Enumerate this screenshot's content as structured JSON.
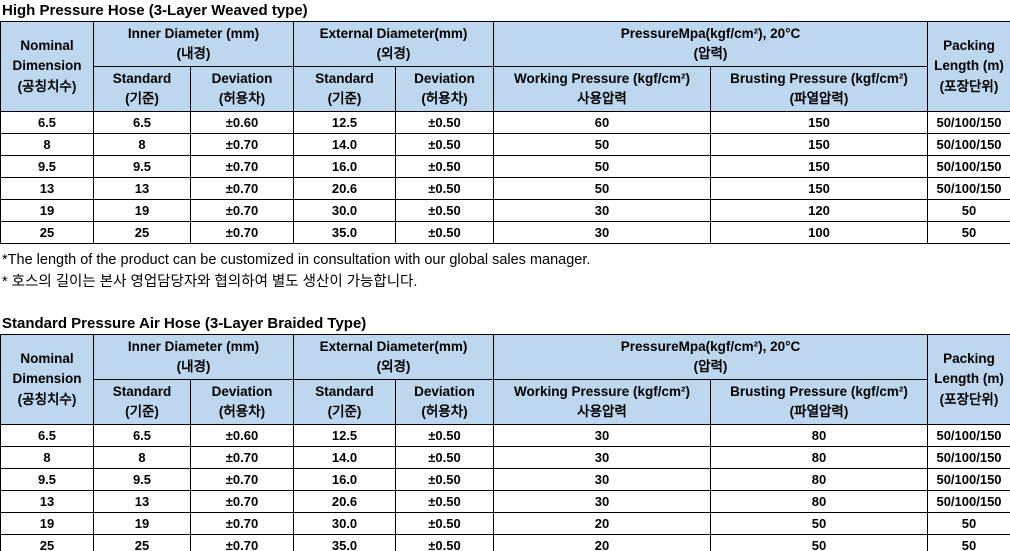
{
  "colors": {
    "header_bg": "#BDD7EE",
    "border": "#000000",
    "text": "#000000"
  },
  "tables": [
    {
      "title": "High Pressure Hose (3-Layer Weaved type)",
      "header": {
        "nominal_dimension": "Nominal\nDimension\n(공칭치수)",
        "inner_diameter": "Inner Diameter (mm)\n(내경)",
        "external_diameter": "External Diameter(mm)\n(외경)",
        "pressure": "PressureMpa(kgf/cm²), 20°C\n(압력)",
        "packing_length": "Packing\nLength (m)\n(포장단위)",
        "standard_inner": "Standard\n(기준)",
        "deviation_inner": "Deviation\n(허용차)",
        "standard_external": "Standard\n(기준)",
        "deviation_external": "Deviation\n(허용차)",
        "working_pressure": "Working Pressure (kgf/cm²)\n사용압력",
        "brusting_pressure": "Brusting Pressure (kgf/cm²)\n(파열압력)"
      },
      "rows": [
        [
          "6.5",
          "6.5",
          "±0.60",
          "12.5",
          "±0.50",
          "60",
          "150",
          "50/100/150"
        ],
        [
          "8",
          "8",
          "±0.70",
          "14.0",
          "±0.50",
          "50",
          "150",
          "50/100/150"
        ],
        [
          "9.5",
          "9.5",
          "±0.70",
          "16.0",
          "±0.50",
          "50",
          "150",
          "50/100/150"
        ],
        [
          "13",
          "13",
          "±0.70",
          "20.6",
          "±0.50",
          "50",
          "150",
          "50/100/150"
        ],
        [
          "19",
          "19",
          "±0.70",
          "30.0",
          "±0.50",
          "30",
          "120",
          "50"
        ],
        [
          "25",
          "25",
          "±0.70",
          "35.0",
          "±0.50",
          "30",
          "100",
          "50"
        ]
      ]
    },
    {
      "title": "Standard Pressure Air Hose (3-Layer Braided Type)",
      "header": {
        "nominal_dimension": "Nominal\nDimension\n(공칭치수)",
        "inner_diameter": "Inner Diameter (mm)\n(내경)",
        "external_diameter": "External Diameter(mm)\n(외경)",
        "pressure": "PressureMpa(kgf/cm²), 20°C\n(압력)",
        "packing_length": "Packing\nLength (m)\n(포장단위)",
        "standard_inner": "Standard\n(기준)",
        "deviation_inner": "Deviation\n(허용차)",
        "standard_external": "Standard\n(기준)",
        "deviation_external": "Deviation\n(허용차)",
        "working_pressure": "Working Pressure (kgf/cm²)\n사용압력",
        "brusting_pressure": "Brusting Pressure (kgf/cm²)\n(파열압력)"
      },
      "rows": [
        [
          "6.5",
          "6.5",
          "±0.60",
          "12.5",
          "±0.50",
          "30",
          "80",
          "50/100/150"
        ],
        [
          "8",
          "8",
          "±0.70",
          "14.0",
          "±0.50",
          "30",
          "80",
          "50/100/150"
        ],
        [
          "9.5",
          "9.5",
          "±0.70",
          "16.0",
          "±0.50",
          "30",
          "80",
          "50/100/150"
        ],
        [
          "13",
          "13",
          "±0.70",
          "20.6",
          "±0.50",
          "30",
          "80",
          "50/100/150"
        ],
        [
          "19",
          "19",
          "±0.70",
          "30.0",
          "±0.50",
          "20",
          "50",
          "50"
        ],
        [
          "25",
          "25",
          "±0.70",
          "35.0",
          "±0.50",
          "20",
          "50",
          "50"
        ]
      ]
    }
  ],
  "notes": [
    "*The length of the product can be customized in consultation with our global sales manager.",
    "* 호스의 길이는 본사 영업담당자와 협의하여 별도 생산이 가능합니다."
  ]
}
